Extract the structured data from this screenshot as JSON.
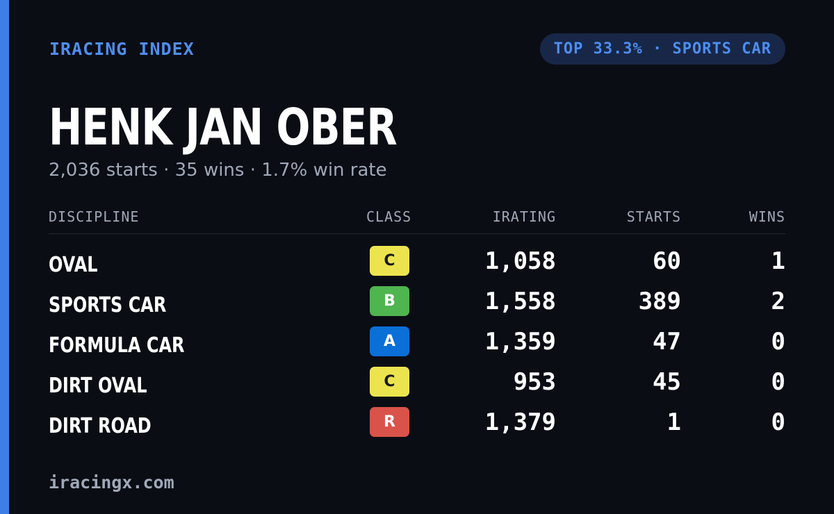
{
  "brand": "IRACING INDEX",
  "rank_pill": "TOP 33.3% · SPORTS CAR",
  "driver_name": "HENK JAN OBER",
  "summary": "2,036 starts · 35 wins · 1.7% win rate",
  "table": {
    "headers": {
      "discipline": "DISCIPLINE",
      "class": "CLASS",
      "irating": "IRATING",
      "starts": "STARTS",
      "wins": "WINS"
    },
    "rows": [
      {
        "discipline": "OVAL",
        "class": "C",
        "irating": "1,058",
        "starts": "60",
        "wins": "1"
      },
      {
        "discipline": "SPORTS CAR",
        "class": "B",
        "irating": "1,558",
        "starts": "389",
        "wins": "2"
      },
      {
        "discipline": "FORMULA CAR",
        "class": "A",
        "irating": "1,359",
        "starts": "47",
        "wins": "0"
      },
      {
        "discipline": "DIRT OVAL",
        "class": "C",
        "irating": "953",
        "starts": "45",
        "wins": "0"
      },
      {
        "discipline": "DIRT ROAD",
        "class": "R",
        "irating": "1,379",
        "starts": "1",
        "wins": "0"
      }
    ]
  },
  "class_colors": {
    "A": {
      "bg": "#0b6fd8",
      "fg": "#ffffff"
    },
    "B": {
      "bg": "#4fb54f",
      "fg": "#ffffff"
    },
    "C": {
      "bg": "#ece44f",
      "fg": "#1a1a1a"
    },
    "R": {
      "bg": "#d9534a",
      "fg": "#ffffff"
    }
  },
  "footer": "iracingx.com"
}
